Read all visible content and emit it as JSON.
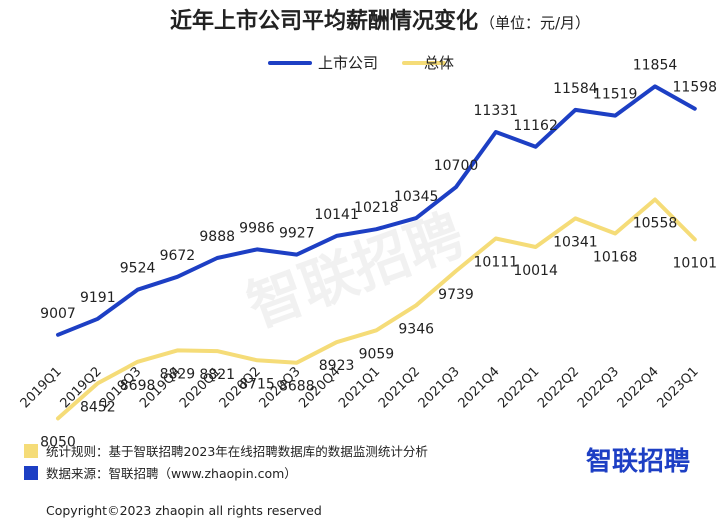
{
  "header": {
    "title": "近年上市公司平均薪酬情况变化",
    "unit": "（单位：元/月）"
  },
  "colors": {
    "listed": "#1d3fc4",
    "overall": "#f5dc78",
    "text": "#222222",
    "brand": "#1d3fc4"
  },
  "chart_data": {
    "type": "line",
    "title": "近年上市公司平均薪酬情况变化",
    "xlabel": "",
    "ylabel": "元/月",
    "ylim": [
      7000,
      12500
    ],
    "grid": false,
    "legend_position": "top-center",
    "categories": [
      "2019Q1",
      "2019Q2",
      "2019Q3",
      "2019Q4",
      "2020Q1",
      "2020Q2",
      "2020Q3",
      "2020Q4",
      "2021Q1",
      "2021Q2",
      "2021Q3",
      "2021Q4",
      "2022Q1",
      "2022Q2",
      "2022Q3",
      "2022Q4",
      "2023Q1"
    ],
    "series": [
      {
        "name": "上市公司",
        "color": "#1d3fc4",
        "values": [
          9007,
          9191,
          9524,
          9672,
          9888,
          9986,
          9927,
          10141,
          10218,
          10345,
          10700,
          11331,
          11162,
          11584,
          11519,
          11854,
          11598
        ]
      },
      {
        "name": "总体",
        "color": "#f5dc78",
        "values": [
          8050,
          8452,
          8698,
          8829,
          8821,
          8715,
          8688,
          8923,
          9059,
          9346,
          9739,
          10111,
          10014,
          10341,
          10168,
          10558,
          10101
        ]
      }
    ]
  },
  "watermark": "智联招聘",
  "footer": {
    "notes": [
      {
        "text": "统计规则：基于智联招聘2023年在线招聘数据库的数据监测统计分析",
        "color": "#f5dc78"
      },
      {
        "text": "数据来源：智联招聘（www.zhaopin.com）",
        "color": "#1d3fc4"
      }
    ],
    "brand": "智联招聘",
    "copyright": "Copyright©2023 zhaopin all rights reserved"
  }
}
